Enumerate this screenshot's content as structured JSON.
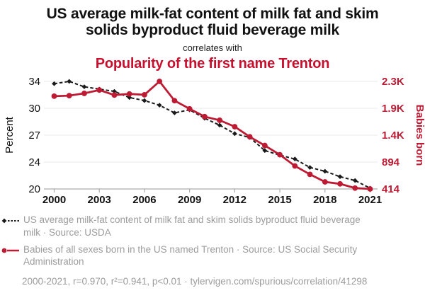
{
  "header": {
    "title": "US average milk-fat content of milk fat and skim solids byproduct fluid beverage milk",
    "subtitle": "correlates with",
    "title2": "Popularity of the first name Trenton"
  },
  "colors": {
    "background": "#ffffff",
    "title_black": "#111111",
    "accent_red": "#c8102e",
    "series_red": "#bd1b33",
    "series_black": "#1a1a1a",
    "legend_gray": "#9c9c9c",
    "grid": "#e8e8e8",
    "axis": "#aaaaaa"
  },
  "chart_data": {
    "type": "line",
    "x": [
      2000,
      2001,
      2002,
      2003,
      2004,
      2005,
      2006,
      2007,
      2008,
      2009,
      2010,
      2011,
      2012,
      2013,
      2014,
      2015,
      2016,
      2017,
      2018,
      2019,
      2020,
      2021
    ],
    "x_tick_labels": [
      "2000",
      "2003",
      "2006",
      "2009",
      "2012",
      "2015",
      "2018",
      "2021"
    ],
    "left_axis": {
      "title": "Percent",
      "min": 20,
      "max": 34,
      "tick_labels": [
        "34",
        "30",
        "27",
        "24",
        "20"
      ]
    },
    "right_axis": {
      "title": "Babies born",
      "min": 414,
      "max": 2334,
      "tick_labels": [
        "2.3K",
        "1.9K",
        "1.4K",
        "894",
        "414"
      ]
    },
    "series": [
      {
        "name": "US average milk-fat content of milk fat and skim solids byproduct fluid beverage milk",
        "axis": "left",
        "line_style": "dashed",
        "marker": "diamond",
        "color_key": "series_black",
        "values": [
          33.7,
          34.0,
          33.3,
          33.0,
          32.7,
          31.9,
          31.5,
          30.9,
          29.9,
          30.3,
          29.2,
          28.3,
          27.2,
          26.7,
          25.0,
          24.4,
          23.9,
          22.8,
          22.3,
          21.6,
          21.1,
          20.1
        ]
      },
      {
        "name": "Babies of all sexes born in the US named Trenton",
        "axis": "right",
        "line_style": "solid",
        "marker": "circle",
        "color_key": "series_red",
        "values": [
          2070,
          2080,
          2120,
          2180,
          2090,
          2110,
          2095,
          2334,
          1990,
          1845,
          1705,
          1640,
          1525,
          1345,
          1190,
          1025,
          825,
          675,
          540,
          505,
          430,
          414
        ]
      }
    ],
    "legend_position": "bottom",
    "grid": "horizontal"
  },
  "legend": {
    "items": [
      {
        "label": "US average milk-fat content of milk fat and skim solids byproduct fluid beverage milk · Source: USDA"
      },
      {
        "label": "Babies of all sexes born in the US named Trenton · Source: US Social Security Administration"
      }
    ]
  },
  "footer": {
    "text": "2000-2021, r=0.970, r²=0.941, p<0.01 · tylervigen.com/spurious/correlation/41298"
  }
}
